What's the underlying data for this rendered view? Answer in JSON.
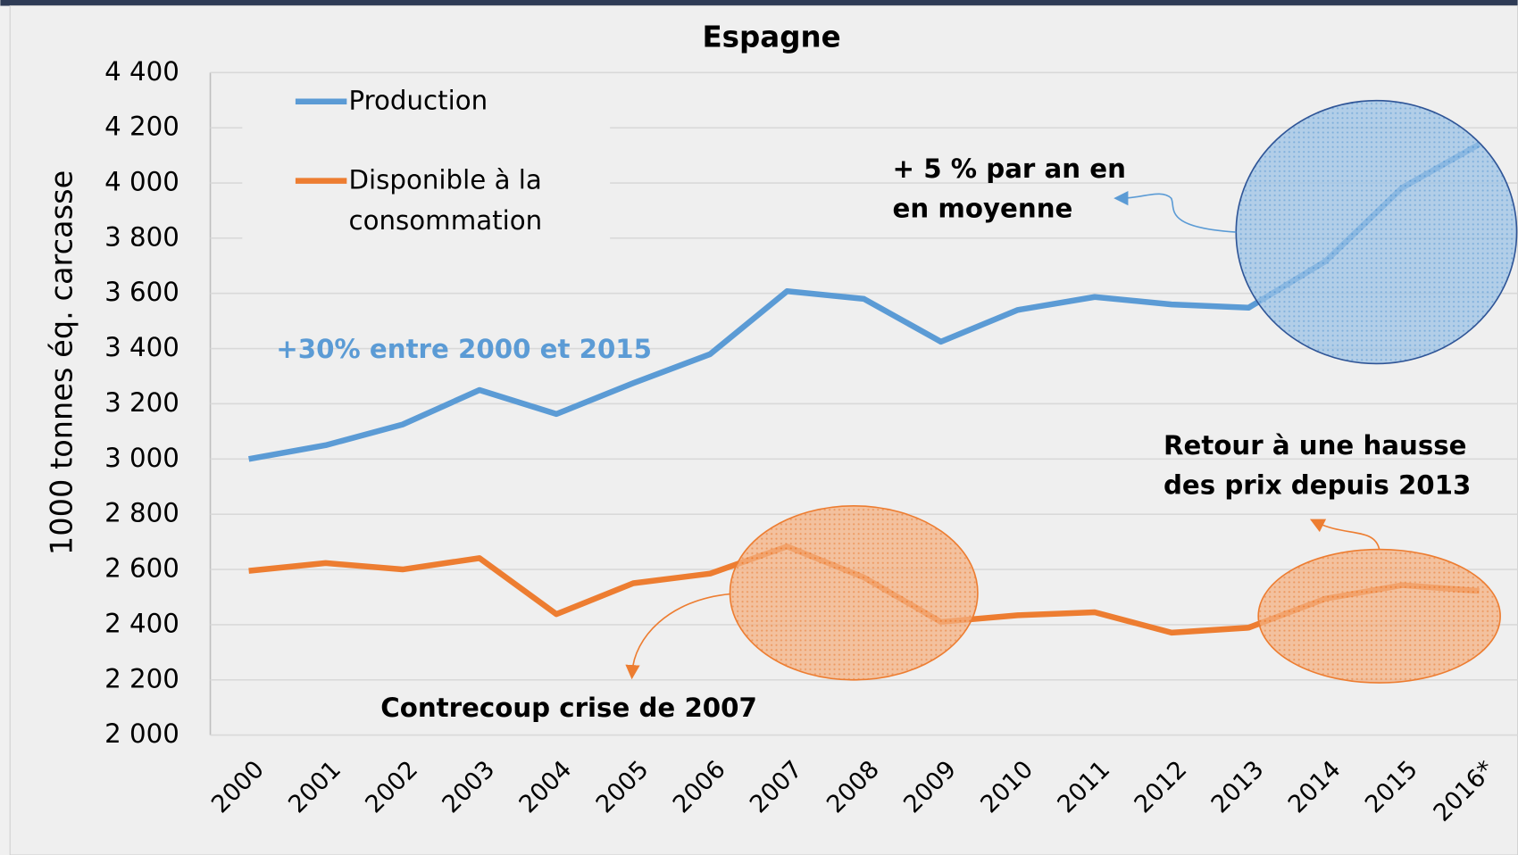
{
  "chart_data": {
    "type": "line",
    "title": "Espagne",
    "ylabel": "1000 tonnes éq. carcasse",
    "categories": [
      "2000",
      "2001",
      "2002",
      "2003",
      "2004",
      "2005",
      "2006",
      "2007",
      "2008",
      "2009",
      "2010",
      "2011",
      "2012",
      "2013",
      "2014",
      "2015",
      "2016*"
    ],
    "series": [
      {
        "name": "Production",
        "color": "#5b9bd5",
        "values": [
          3000,
          3050,
          3125,
          3250,
          3163,
          3275,
          3380,
          3608,
          3580,
          3425,
          3540,
          3587,
          3560,
          3548,
          3716,
          3983,
          4140
        ]
      },
      {
        "name": "Disponible à la consommation",
        "color": "#ed7d31",
        "values": [
          2595,
          2623,
          2600,
          2641,
          2438,
          2550,
          2585,
          2683,
          2571,
          2410,
          2434,
          2445,
          2371,
          2389,
          2494,
          2543,
          2522
        ]
      }
    ],
    "ylim": [
      2000,
      4400
    ],
    "yticks": [
      {
        "value": 2000,
        "label": "2 000"
      },
      {
        "value": 2200,
        "label": "2 200"
      },
      {
        "value": 2400,
        "label": "2 400"
      },
      {
        "value": 2600,
        "label": "2 600"
      },
      {
        "value": 2800,
        "label": "2 800"
      },
      {
        "value": 3000,
        "label": "3 000"
      },
      {
        "value": 3200,
        "label": "3 200"
      },
      {
        "value": 3400,
        "label": "3 400"
      },
      {
        "value": 3600,
        "label": "3 600"
      },
      {
        "value": 3800,
        "label": "3 800"
      },
      {
        "value": 4000,
        "label": "4 000"
      },
      {
        "value": 4200,
        "label": "4 200"
      },
      {
        "value": 4400,
        "label": "4 400"
      }
    ],
    "grid": true,
    "legend": "upper left",
    "annotations": [
      {
        "lines": [
          "+30% entre 2000 et 2015"
        ],
        "color": "#5b9bd5"
      },
      {
        "lines": [
          "+ 5 % par an en",
          "en moyenne"
        ],
        "color": "#000000"
      },
      {
        "lines": [
          "Retour à une hausse",
          "des prix depuis 2013"
        ],
        "color": "#000000"
      },
      {
        "lines": [
          "Contrecoup crise de 2007"
        ],
        "color": "#000000"
      }
    ]
  }
}
